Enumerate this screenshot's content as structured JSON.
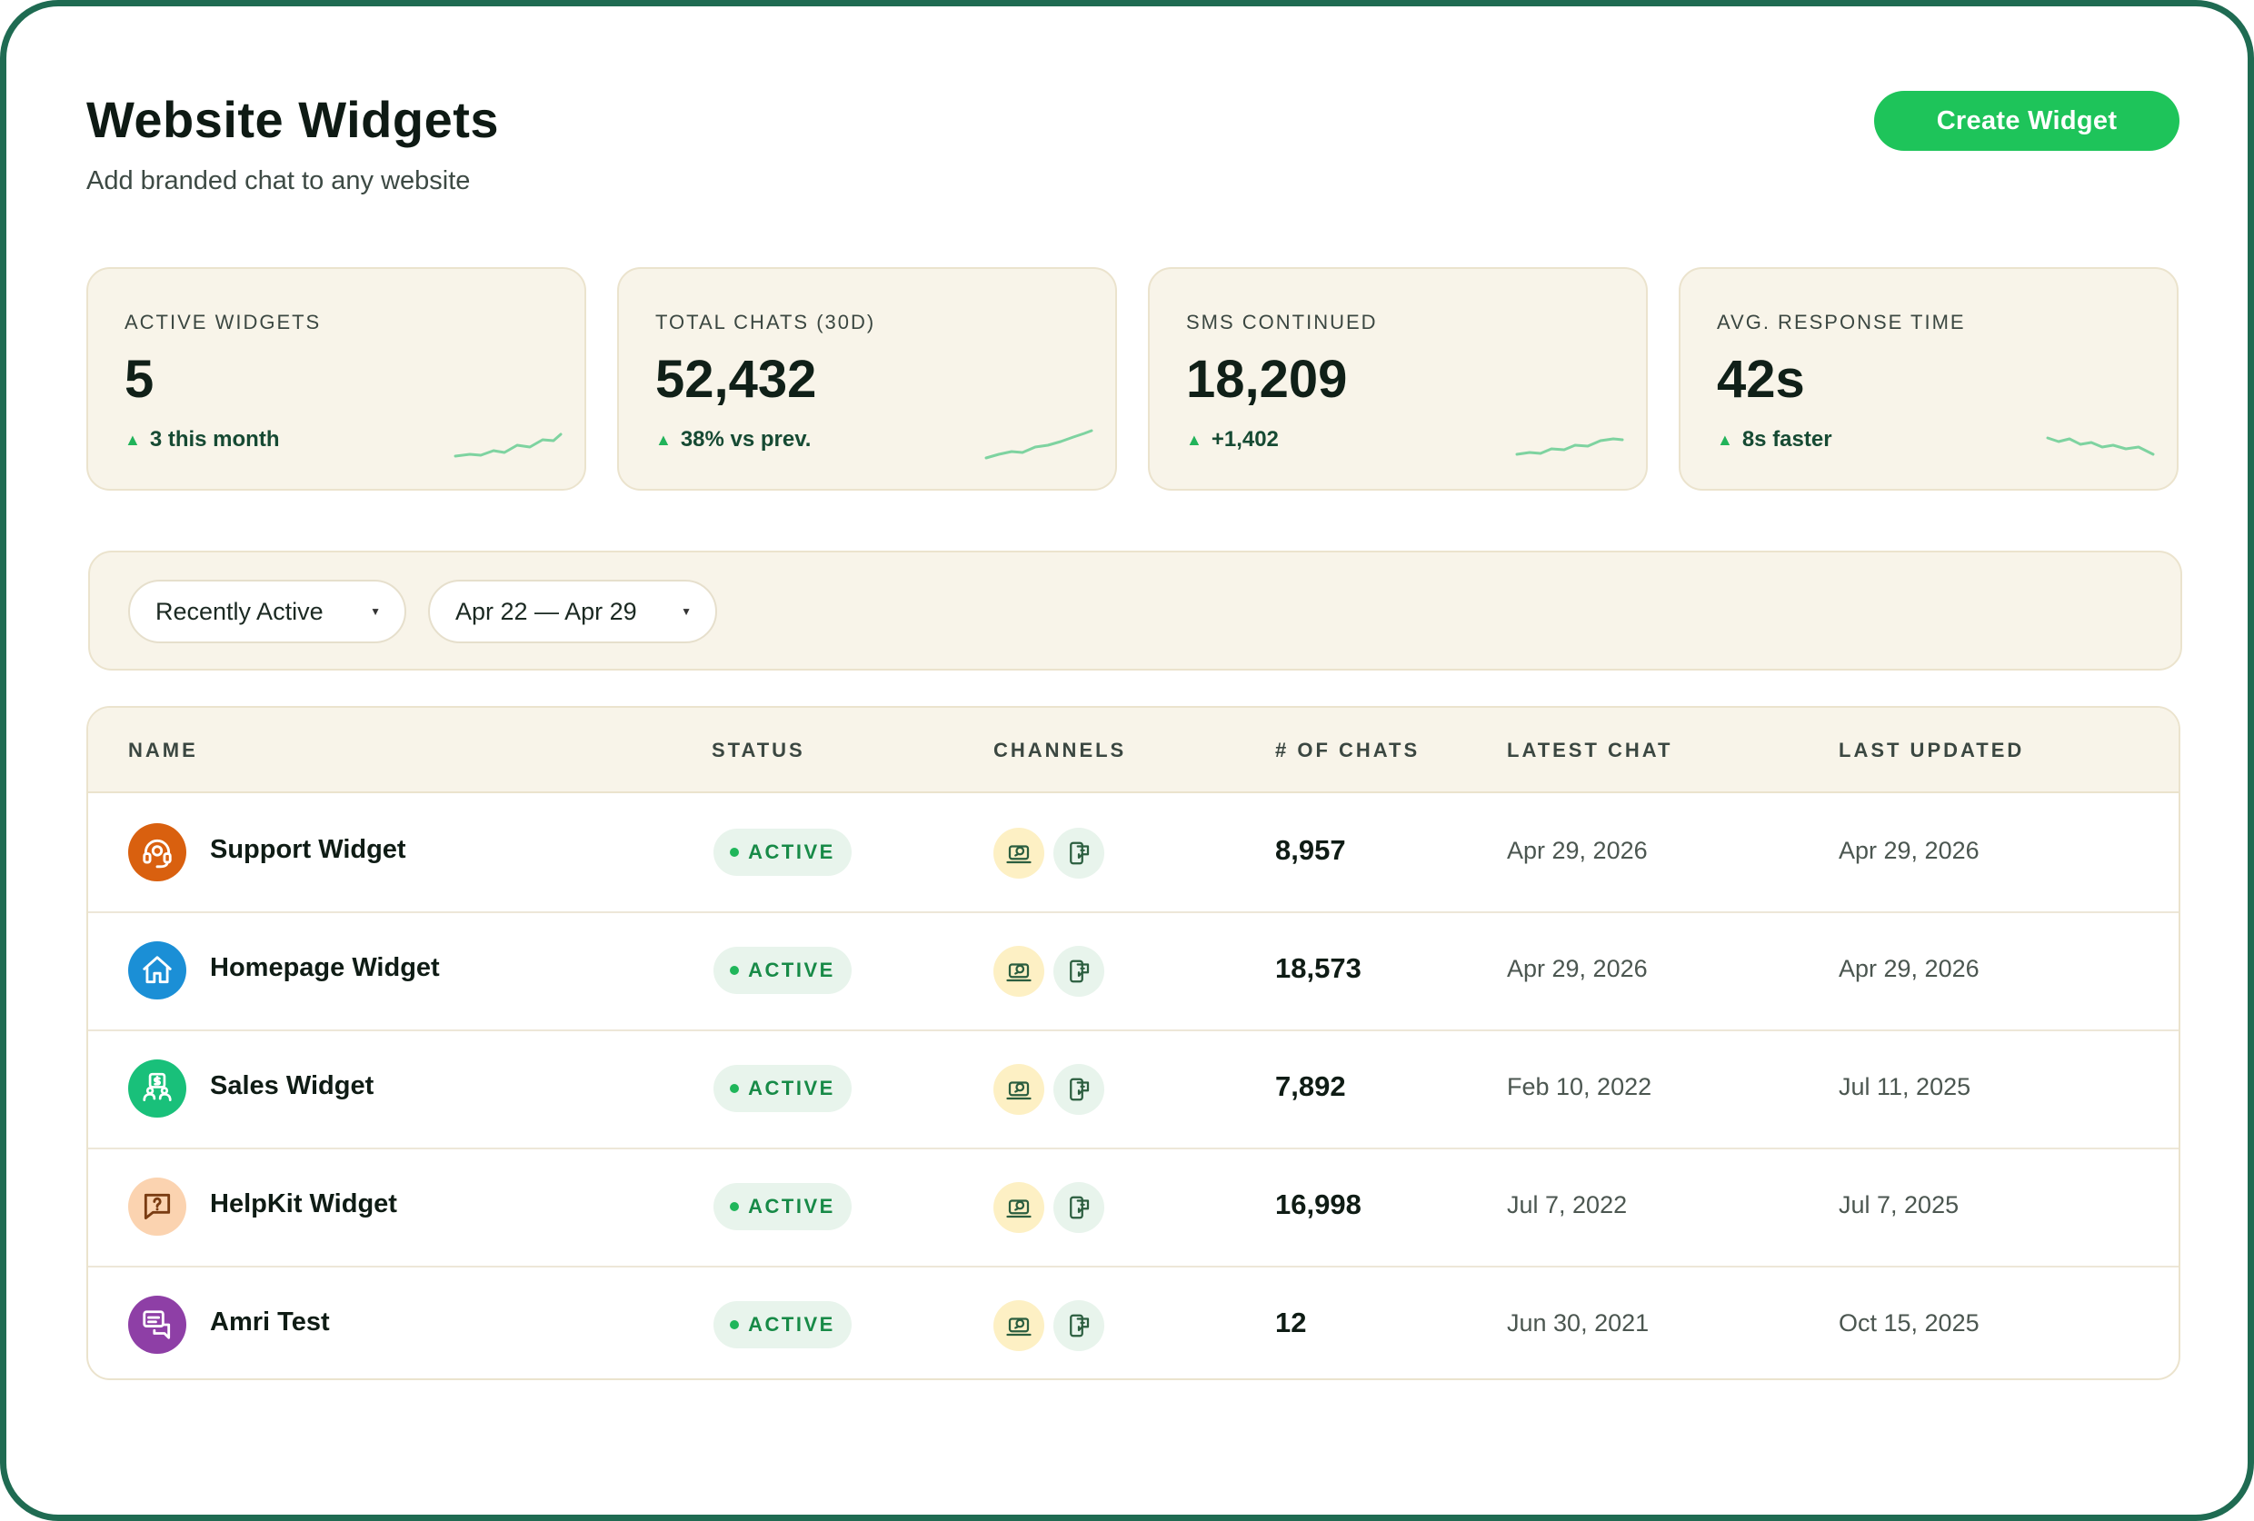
{
  "header": {
    "title": "Website Widgets",
    "subtitle": "Add branded chat to any website",
    "create_button": "Create Widget"
  },
  "stats": [
    {
      "label": "ACTIVE WIDGETS",
      "value": "5",
      "delta": "3 this month",
      "trend": "up"
    },
    {
      "label": "TOTAL CHATS (30D)",
      "value": "52,432",
      "delta": "38% vs prev.",
      "trend": "up"
    },
    {
      "label": "SMS CONTINUED",
      "value": "18,209",
      "delta": "+1,402",
      "trend": "up"
    },
    {
      "label": "AVG. RESPONSE TIME",
      "value": "42s",
      "delta": "8s faster",
      "trend": "down"
    }
  ],
  "filters": {
    "sort": "Recently Active",
    "date_range": "Apr 22 — Apr 29"
  },
  "table": {
    "columns": [
      "NAME",
      "STATUS",
      "CHANNELS",
      "# OF CHATS",
      "LATEST CHAT",
      "LAST UPDATED"
    ],
    "rows": [
      {
        "name": "Support Widget",
        "icon": "headset-icon",
        "color": "#d9600f",
        "status": "ACTIVE",
        "chats": "8,957",
        "latest_chat": "Apr 29, 2026",
        "last_updated": "Apr 29, 2026"
      },
      {
        "name": "Homepage Widget",
        "icon": "home-icon",
        "color": "#1b8fd6",
        "status": "ACTIVE",
        "chats": "18,573",
        "latest_chat": "Apr 29, 2026",
        "last_updated": "Apr 29, 2026"
      },
      {
        "name": "Sales Widget",
        "icon": "sales-icon",
        "color": "#19c07a",
        "status": "ACTIVE",
        "chats": "7,892",
        "latest_chat": "Feb 10, 2022",
        "last_updated": "Jul 11, 2025"
      },
      {
        "name": "HelpKit Widget",
        "icon": "question-icon",
        "color": "#fbd3b0",
        "status": "ACTIVE",
        "chats": "16,998",
        "latest_chat": "Jul 7, 2022",
        "last_updated": "Jul 7, 2025"
      },
      {
        "name": "Amri Test",
        "icon": "chat-icon",
        "color": "#8e3fa6",
        "status": "ACTIVE",
        "chats": "12",
        "latest_chat": "Jun 30, 2021",
        "last_updated": "Oct 15, 2025"
      }
    ]
  },
  "colors": {
    "brand": "#1ec45a",
    "frame": "#1f6b52",
    "card_bg": "#f8f4e9",
    "status_active": "#178a47"
  }
}
